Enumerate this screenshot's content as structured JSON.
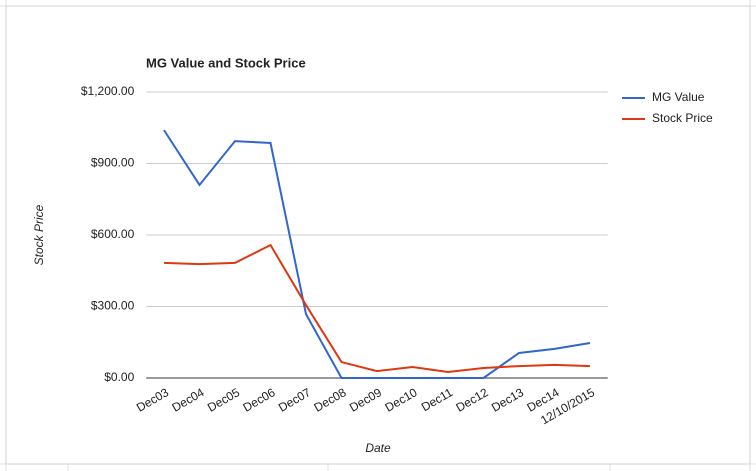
{
  "chart_data": {
    "type": "line",
    "title": "MG Value and Stock Price",
    "x_label": "Date",
    "y_label": "Stock Price",
    "categories": [
      "Dec03",
      "Dec04",
      "Dec05",
      "Dec06",
      "Dec07",
      "Dec08",
      "Dec09",
      "Dec10",
      "Dec11",
      "Dec12",
      "Dec13",
      "Dec14",
      "12/10/2015"
    ],
    "series": [
      {
        "name": "MG Value",
        "color": "#3366cc",
        "values": [
          1040,
          810,
          994,
          986,
          268,
          0,
          0,
          0,
          0,
          0,
          105,
          122,
          147
        ]
      },
      {
        "name": "Stock Price",
        "color": "#dc3912",
        "values": [
          483,
          478,
          483,
          558,
          306,
          67,
          29,
          46,
          25,
          42,
          50,
          55,
          50
        ]
      }
    ],
    "ylim": [
      0,
      1200
    ],
    "yticks": [
      {
        "value": 0,
        "label": "$0.00"
      },
      {
        "value": 300,
        "label": "$300.00"
      },
      {
        "value": 600,
        "label": "$600.00"
      },
      {
        "value": 900,
        "label": "$900.00"
      },
      {
        "value": 1200,
        "label": "$1,200.00"
      }
    ],
    "grid": true,
    "legend": "right"
  }
}
